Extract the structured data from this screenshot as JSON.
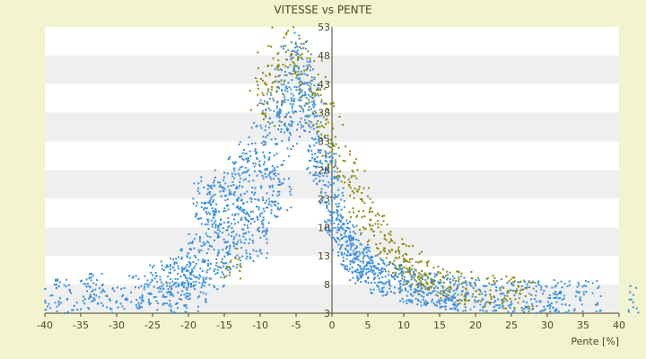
{
  "chart_data": {
    "type": "scatter",
    "title": "VITESSE vs PENTE",
    "xlabel": "Pente [%]",
    "ylabel": "",
    "xlim": [
      -40,
      40
    ],
    "ylim": [
      3,
      53
    ],
    "x_ticks": [
      -40,
      -35,
      -30,
      -25,
      -20,
      -15,
      -10,
      -5,
      0,
      5,
      10,
      15,
      20,
      25,
      30,
      35,
      40
    ],
    "y_ticks_visible": [
      3,
      8,
      13,
      18,
      23,
      28,
      33,
      38,
      43,
      48,
      53
    ],
    "y_tick_labels": [
      "3",
      "8",
      "13",
      "18",
      "23",
      "28",
      "33",
      "38",
      "43",
      "48",
      "53"
    ],
    "grid": "alternating horizontal bands every 5 units",
    "legend": "none",
    "colors": {
      "background": "#f1f4cf",
      "plot_band_light": "#ffffff",
      "plot_band_dark": "#efefef",
      "axis": "#444422",
      "series_blue": "#3a8fe0",
      "series_olive": "#8a8a10"
    },
    "series": [
      {
        "color": "#3a8fe0",
        "description_points": "dense cloud peaking near x=-4 y=48, decaying to y≈6 at x=±20",
        "values": [
          [
            -39.6,
            5.5
          ],
          [
            -37,
            6
          ],
          [
            -33.5,
            6.6
          ],
          [
            -33,
            7
          ],
          [
            -30,
            5
          ],
          [
            -27,
            6.8
          ],
          [
            -25,
            6.5
          ],
          [
            -24,
            8.6
          ],
          [
            -23,
            9.8
          ],
          [
            -22,
            7
          ],
          [
            -21,
            5.6
          ],
          [
            -20.5,
            10.5
          ],
          [
            -20,
            8
          ],
          [
            -19.5,
            12
          ],
          [
            -19,
            6.2
          ],
          [
            -18.5,
            14
          ],
          [
            -18,
            24
          ],
          [
            -17.5,
            22.5
          ],
          [
            -17,
            18
          ],
          [
            -16.5,
            10
          ],
          [
            -16,
            20
          ],
          [
            -15.5,
            12
          ],
          [
            -15,
            26
          ],
          [
            -14.5,
            16
          ],
          [
            -14,
            24
          ],
          [
            -13.5,
            14
          ],
          [
            -13,
            28
          ],
          [
            -12.5,
            18
          ],
          [
            -12,
            22
          ],
          [
            -11.5,
            30
          ],
          [
            -11,
            20
          ],
          [
            -10.5,
            15
          ],
          [
            -10,
            33
          ],
          [
            -9.5,
            25
          ],
          [
            -9,
            20
          ],
          [
            -8.5,
            36
          ],
          [
            -8,
            28
          ],
          [
            -7.5,
            38
          ],
          [
            -7,
            24
          ],
          [
            -6.5,
            42
          ],
          [
            -6,
            35
          ],
          [
            -5.5,
            45
          ],
          [
            -5,
            40
          ],
          [
            -4.5,
            47
          ],
          [
            -4,
            44
          ],
          [
            -3.5,
            42
          ],
          [
            -3,
            38
          ],
          [
            -2.5,
            36
          ],
          [
            -2,
            32
          ],
          [
            -1.5,
            30
          ],
          [
            -1,
            28
          ],
          [
            -0.5,
            25
          ],
          [
            0,
            22
          ],
          [
            0.5,
            20
          ],
          [
            1,
            18
          ],
          [
            1.5,
            16
          ],
          [
            2,
            15
          ],
          [
            2.5,
            14
          ],
          [
            3,
            13
          ],
          [
            3.5,
            12
          ],
          [
            4,
            11.5
          ],
          [
            4.5,
            11
          ],
          [
            5,
            10.5
          ],
          [
            6,
            10
          ],
          [
            7,
            9.5
          ],
          [
            8,
            9
          ],
          [
            9,
            8.5
          ],
          [
            10,
            8
          ],
          [
            11,
            7.8
          ],
          [
            12,
            7.5
          ],
          [
            13,
            7.2
          ],
          [
            14,
            7
          ],
          [
            15,
            6.8
          ],
          [
            16,
            6.6
          ],
          [
            17,
            6.5
          ],
          [
            18,
            6.3
          ],
          [
            20,
            6.2
          ],
          [
            22,
            6
          ],
          [
            24,
            6
          ],
          [
            26,
            5.8
          ],
          [
            28,
            5.6
          ],
          [
            30,
            5.8
          ],
          [
            31,
            5
          ],
          [
            33,
            5.6
          ],
          [
            36,
            5.8
          ],
          [
            42.9,
            5.2
          ]
        ]
      },
      {
        "color": "#8a8a10",
        "description_points": "overlaid cloud, mostly between x=-12 and x=25",
        "values": [
          [
            -14,
            12
          ],
          [
            -10,
            42
          ],
          [
            -9,
            45
          ],
          [
            -8,
            40
          ],
          [
            -7,
            48
          ],
          [
            -6,
            50
          ],
          [
            -5,
            49
          ],
          [
            -4,
            46
          ],
          [
            -3,
            43
          ],
          [
            -2,
            40
          ],
          [
            -1,
            37
          ],
          [
            0,
            34
          ],
          [
            1,
            30
          ],
          [
            2,
            27
          ],
          [
            3,
            25
          ],
          [
            4,
            22
          ],
          [
            5,
            20
          ],
          [
            6,
            18
          ],
          [
            7,
            16
          ],
          [
            8,
            14
          ],
          [
            9,
            13
          ],
          [
            10,
            12
          ],
          [
            11,
            11
          ],
          [
            12,
            10
          ],
          [
            13,
            9.5
          ],
          [
            14,
            9
          ],
          [
            15,
            8.5
          ],
          [
            17,
            8
          ],
          [
            19,
            7.5
          ],
          [
            21,
            7
          ],
          [
            23,
            6.8
          ],
          [
            25,
            6.5
          ],
          [
            27,
            6.3
          ]
        ]
      }
    ]
  }
}
